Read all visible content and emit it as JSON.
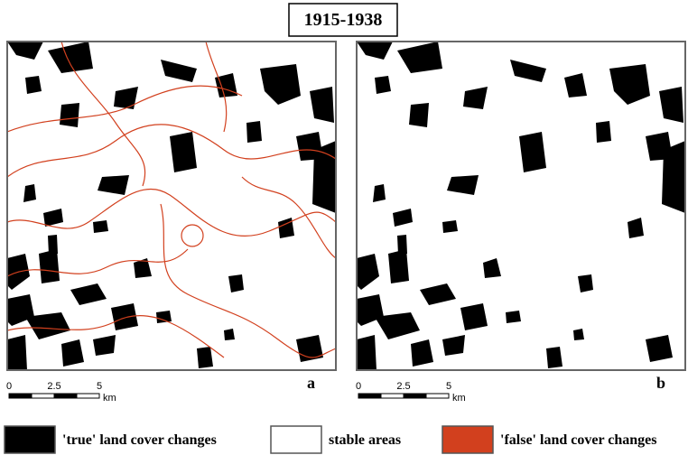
{
  "title": "1915-1938",
  "panels": [
    {
      "label": "a",
      "scale_labels": [
        "0",
        "2.5",
        "5"
      ],
      "scale_unit": "km"
    },
    {
      "label": "b",
      "scale_labels": [
        "0",
        "2.5",
        "5"
      ],
      "scale_unit": "km"
    }
  ],
  "legend": [
    {
      "label": "'true' land cover changes",
      "color": "#000000"
    },
    {
      "label": "stable areas",
      "color": "#ffffff"
    },
    {
      "label": "'false' land cover changes",
      "color": "#d2401e"
    }
  ]
}
